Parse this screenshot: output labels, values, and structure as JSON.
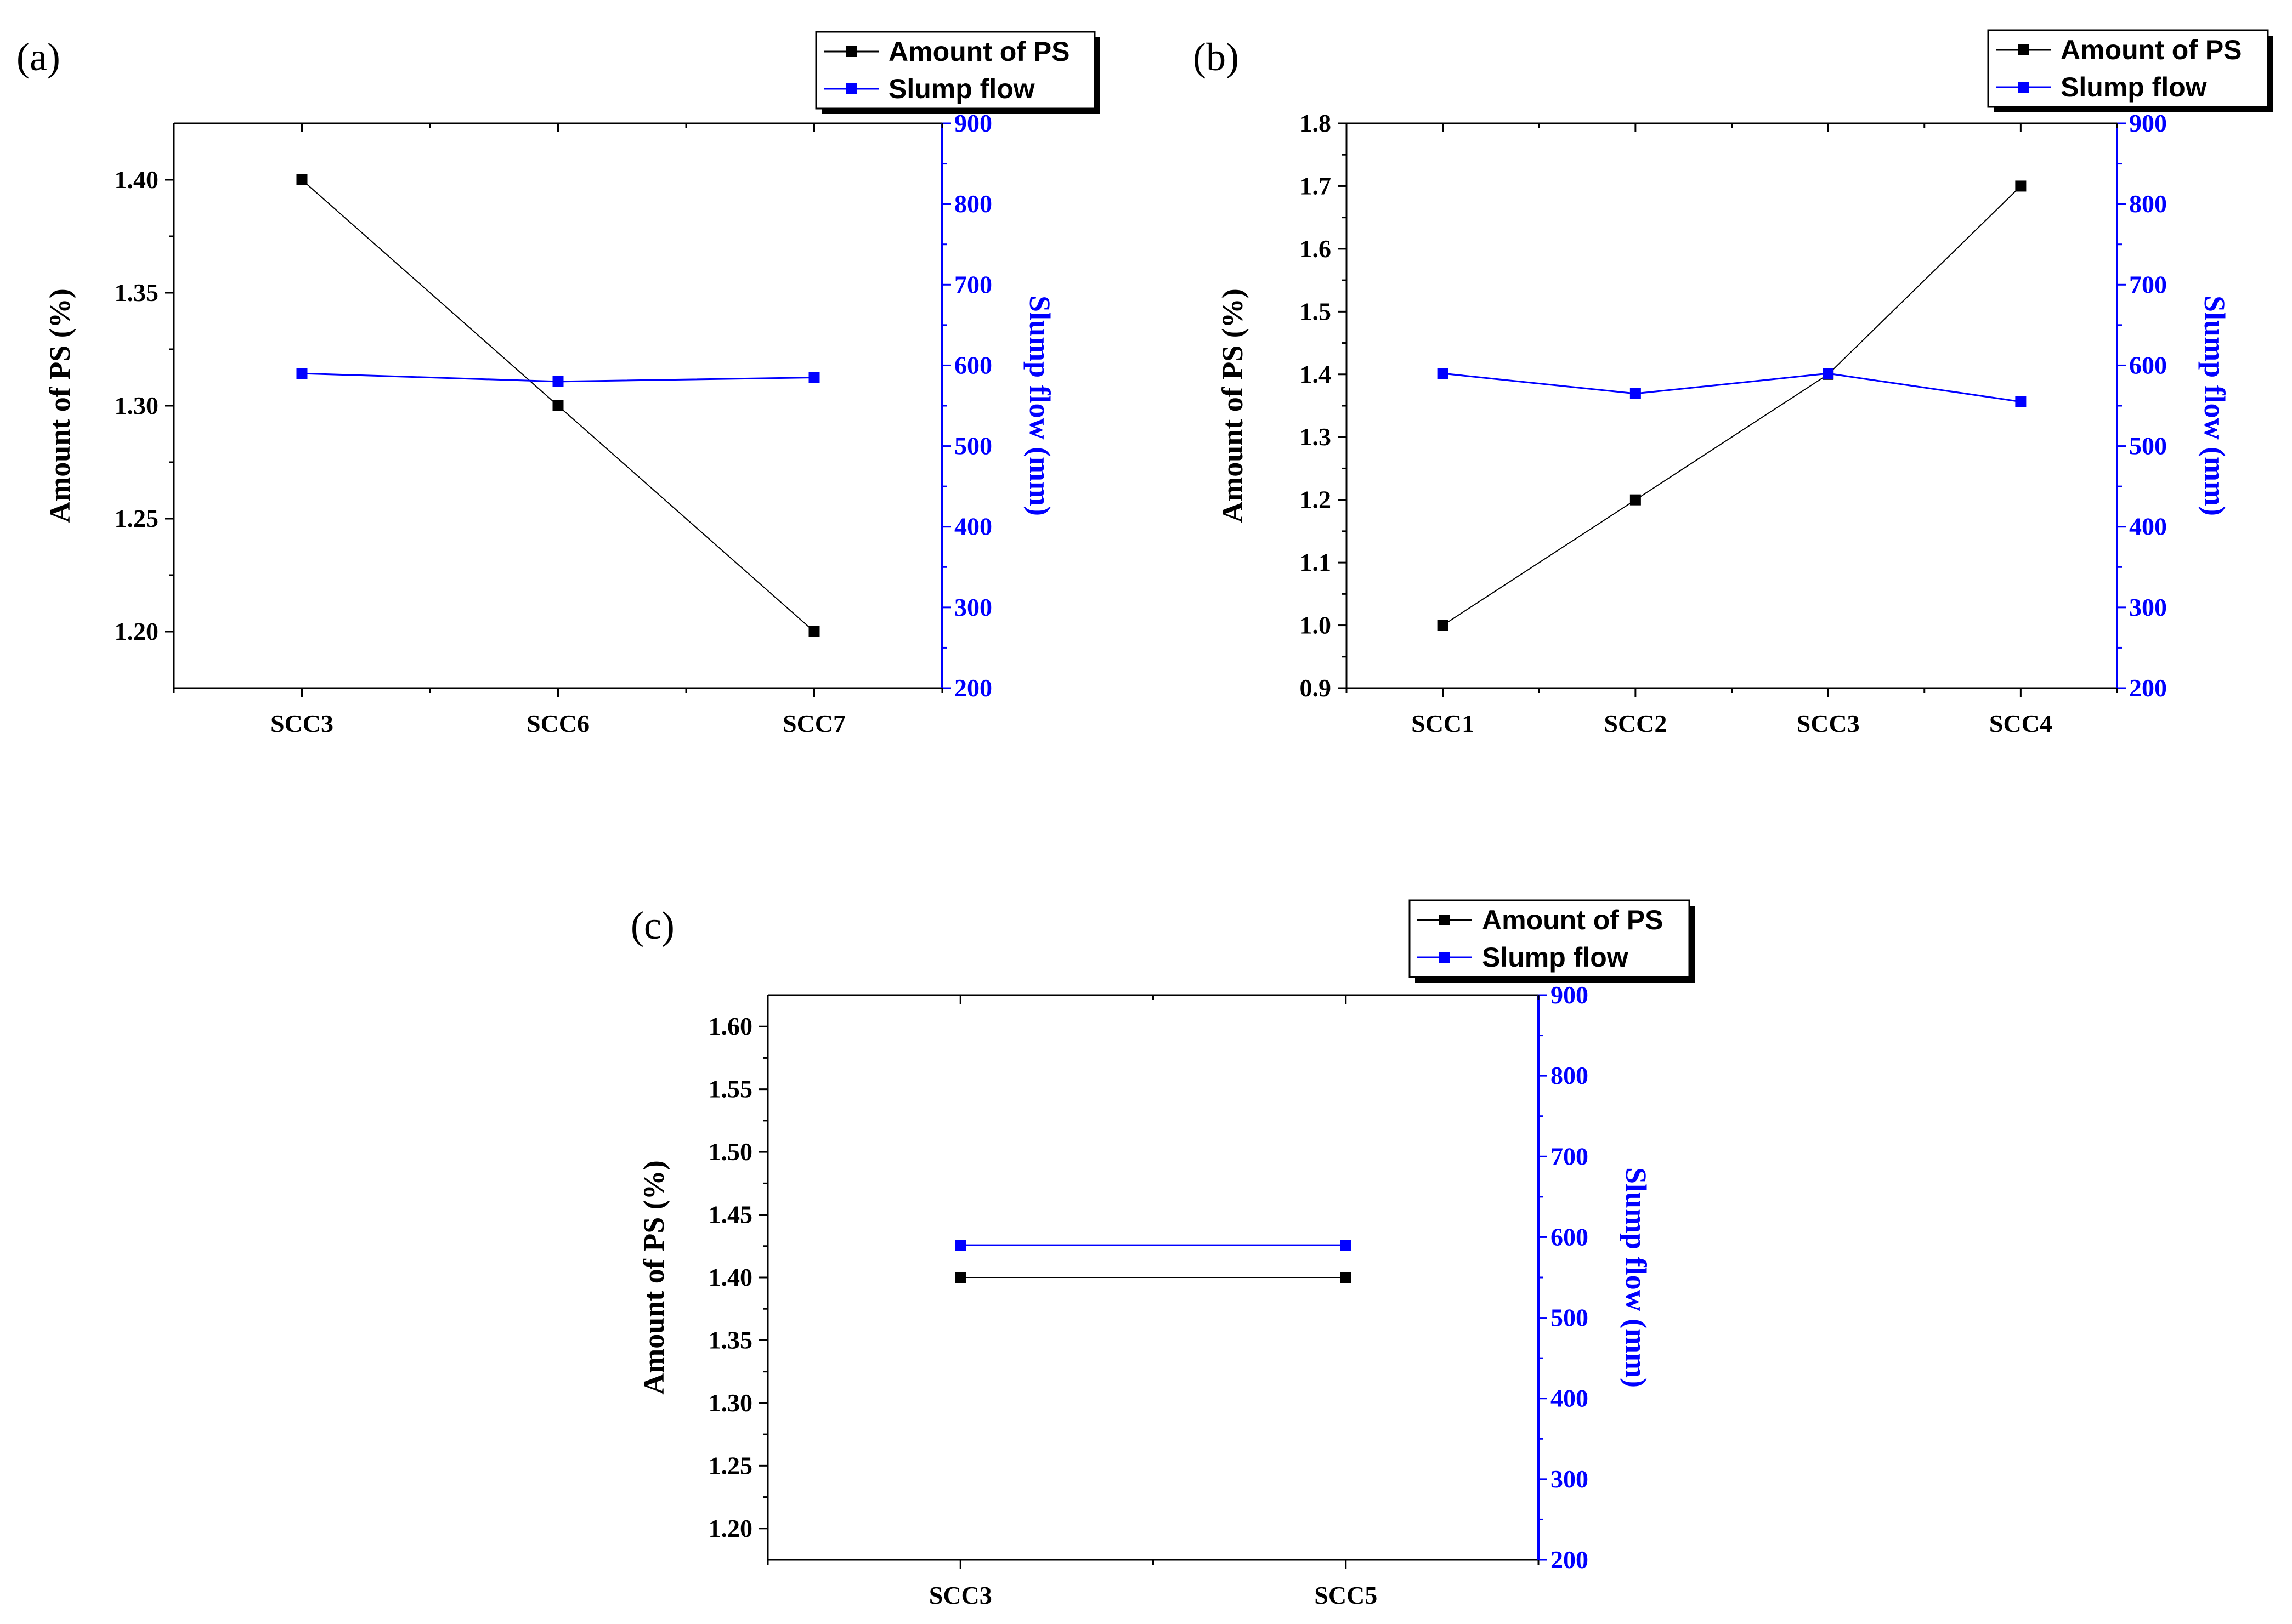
{
  "figure": {
    "colors": {
      "ps": "#000000",
      "slump": "#0000ff",
      "axis": "#000000"
    }
  },
  "chart_data": [
    {
      "panel": "(a)",
      "type": "line",
      "categories": [
        "SCC3",
        "SCC6",
        "SCC7"
      ],
      "series": [
        {
          "name": "Amount of PS",
          "axis": "left",
          "color": "#000000",
          "values": [
            1.4,
            1.3,
            1.2
          ]
        },
        {
          "name": "Slump flow",
          "axis": "right",
          "color": "#0000ff",
          "values": [
            590,
            580,
            585
          ]
        }
      ],
      "ylabel_left": "Amount of PS (%)",
      "ylabel_right": "Slump flow (mm)",
      "ylim_left": [
        1.175,
        1.425
      ],
      "yticks_left": [
        "1.20",
        "1.25",
        "1.30",
        "1.35",
        "1.40"
      ],
      "ylim_right": [
        200,
        900
      ],
      "yticks_right": [
        "200",
        "300",
        "400",
        "500",
        "600",
        "700",
        "800",
        "900"
      ],
      "legend": [
        "Amount of PS",
        "Slump flow"
      ]
    },
    {
      "panel": "(b)",
      "type": "line",
      "categories": [
        "SCC1",
        "SCC2",
        "SCC3",
        "SCC4"
      ],
      "series": [
        {
          "name": "Amount of PS",
          "axis": "left",
          "color": "#000000",
          "values": [
            1.0,
            1.2,
            1.4,
            1.7
          ]
        },
        {
          "name": "Slump flow",
          "axis": "right",
          "color": "#0000ff",
          "values": [
            590,
            565,
            590,
            555
          ]
        }
      ],
      "ylabel_left": "Amount of PS (%)",
      "ylabel_right": "Slump flow (mm)",
      "ylim_left": [
        0.9,
        1.8
      ],
      "yticks_left": [
        "0.9",
        "1.0",
        "1.1",
        "1.2",
        "1.3",
        "1.4",
        "1.5",
        "1.6",
        "1.7",
        "1.8"
      ],
      "ylim_right": [
        200,
        900
      ],
      "yticks_right": [
        "200",
        "300",
        "400",
        "500",
        "600",
        "700",
        "800",
        "900"
      ],
      "legend": [
        "Amount of PS",
        "Slump flow"
      ]
    },
    {
      "panel": "(c)",
      "type": "line",
      "categories": [
        "SCC3",
        "SCC5"
      ],
      "series": [
        {
          "name": "Amount of PS",
          "axis": "left",
          "color": "#000000",
          "values": [
            1.4,
            1.4
          ]
        },
        {
          "name": "Slump flow",
          "axis": "right",
          "color": "#0000ff",
          "values": [
            590,
            590
          ]
        }
      ],
      "ylabel_left": "Amount of PS (%)",
      "ylabel_right": "Slump flow (mm)",
      "ylim_left": [
        1.175,
        1.625
      ],
      "yticks_left": [
        "1.20",
        "1.25",
        "1.30",
        "1.35",
        "1.40",
        "1.45",
        "1.50",
        "1.55",
        "1.60"
      ],
      "ylim_right": [
        200,
        900
      ],
      "yticks_right": [
        "200",
        "300",
        "400",
        "500",
        "600",
        "700",
        "800",
        "900"
      ],
      "legend": [
        "Amount of PS",
        "Slump flow"
      ]
    }
  ]
}
